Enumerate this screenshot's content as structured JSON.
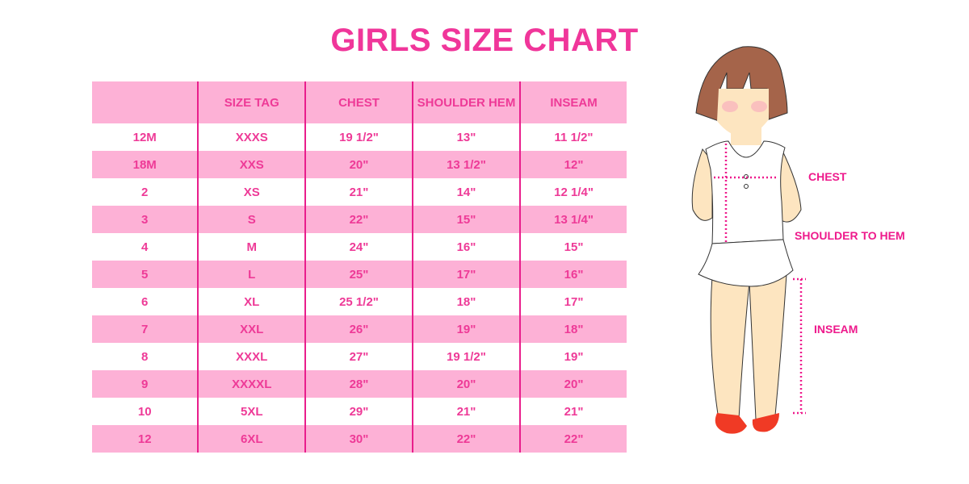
{
  "title": "GIRLS SIZE CHART",
  "table": {
    "headers": [
      "",
      "SIZE TAG",
      "CHEST",
      "SHOULDER HEM",
      "INSEAM"
    ],
    "rows": [
      [
        "12M",
        "XXXS",
        "19 1/2\"",
        "13\"",
        "11 1/2\""
      ],
      [
        "18M",
        "XXS",
        "20\"",
        "13 1/2\"",
        "12\""
      ],
      [
        "2",
        "XS",
        "21\"",
        "14\"",
        "12 1/4\""
      ],
      [
        "3",
        "S",
        "22\"",
        "15\"",
        "13 1/4\""
      ],
      [
        "4",
        "M",
        "24\"",
        "16\"",
        "15\""
      ],
      [
        "5",
        "L",
        "25\"",
        "17\"",
        "16\""
      ],
      [
        "6",
        "XL",
        "25 1/2\"",
        "18\"",
        "17\""
      ],
      [
        "7",
        "XXL",
        "26\"",
        "19\"",
        "18\""
      ],
      [
        "8",
        "XXXL",
        "27\"",
        "19 1/2\"",
        "19\""
      ],
      [
        "9",
        "XXXXL",
        "28\"",
        "20\"",
        "20\""
      ],
      [
        "10",
        "5XL",
        "29\"",
        "21\"",
        "21\""
      ],
      [
        "12",
        "6XL",
        "30\"",
        "22\"",
        "22\""
      ]
    ]
  },
  "figure": {
    "labels": {
      "chest": "CHEST",
      "shoulder_to_hem": "SHOULDER TO HEM",
      "inseam": "INSEAM"
    }
  },
  "colors": {
    "accent": "#f0369a",
    "row_pink": "#fdb1d6",
    "divider": "#e91e8c"
  }
}
